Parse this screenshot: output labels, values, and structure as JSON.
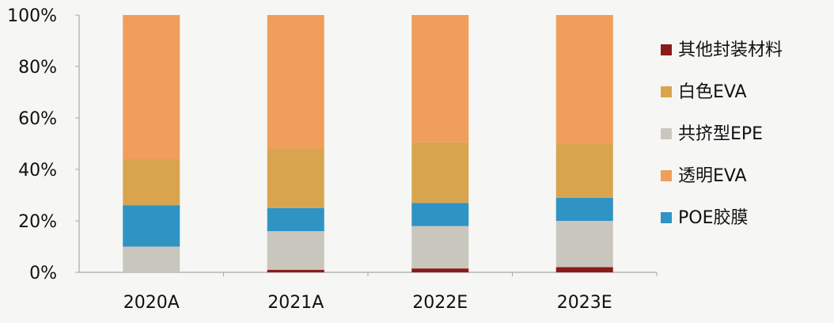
{
  "chart_data": {
    "type": "bar",
    "stacked": true,
    "categories": [
      "2020A",
      "2021A",
      "2022E",
      "2023E"
    ],
    "ylim": [
      0,
      100
    ],
    "yticks": [
      "0%",
      "20%",
      "40%",
      "60%",
      "80%",
      "100%"
    ],
    "series": [
      {
        "name": "其他封装材料",
        "color": "#8b1a1a",
        "values": [
          0,
          1,
          1.5,
          2
        ]
      },
      {
        "name": "共挤型EPE",
        "color": "#c9c7bd",
        "values": [
          10,
          15,
          16.5,
          18
        ]
      },
      {
        "name": "POE胶膜",
        "color": "#2f93c4",
        "values": [
          16,
          9,
          9,
          9
        ]
      },
      {
        "name": "白色EVA",
        "color": "#d8a54e",
        "values": [
          18,
          23,
          23.5,
          21
        ]
      },
      {
        "name": "透明EVA",
        "color": "#ef9e5b",
        "values": [
          56,
          52,
          49.5,
          50
        ]
      }
    ],
    "legend_order": [
      "其他封装材料",
      "白色EVA",
      "共挤型EPE",
      "透明EVA",
      "POE胶膜"
    ],
    "legend_position": "right",
    "grid": false
  }
}
